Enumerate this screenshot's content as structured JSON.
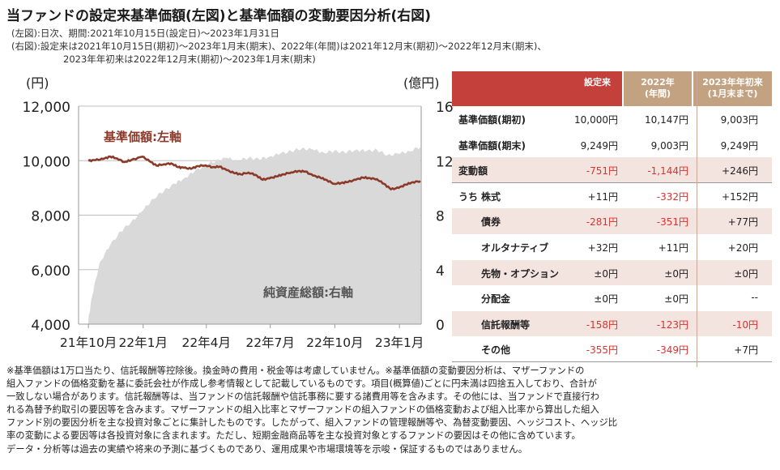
{
  "header": {
    "title": "当ファンドの設定来基準価額(左図)と基準価額の変動要因分析(右図)",
    "sub1": "(左図):日次、期間:2021年10月15日(設定日)〜2023年1月31日",
    "sub2": "(右図):設定来は2021年10月15日(期初)〜2023年1月末(期末)、2022年(年間)は2021年12月末(期初)〜2022年12月末(期末)、",
    "sub3": "2023年年初来は2022年12月末(期初)〜2023年1月末(期末)"
  },
  "chart_data": {
    "type": "line+area",
    "left_unit": "(円)",
    "right_unit": "(億円)",
    "left_axis": {
      "min": 4000,
      "max": 12000,
      "ticks": [
        "12,000",
        "10,000",
        "8,000",
        "6,000",
        "4,000"
      ]
    },
    "right_axis": {
      "min": 0,
      "max": 16,
      "ticks": [
        "16",
        "12",
        "8",
        "4",
        "0"
      ]
    },
    "x_ticks": [
      "21年10月",
      "22年1月",
      "22年4月",
      "22年7月",
      "22年10月",
      "23年1月"
    ],
    "grid": true,
    "series": [
      {
        "name": "基準価額:左軸",
        "axis": "left",
        "color": "#8b3a2a",
        "points": [
          [
            "2021-10-15",
            10000
          ],
          [
            "2021-10-25",
            10020
          ],
          [
            "2021-11-05",
            10060
          ],
          [
            "2021-11-15",
            10150
          ],
          [
            "2021-11-25",
            10080
          ],
          [
            "2021-12-05",
            9950
          ],
          [
            "2021-12-15",
            10020
          ],
          [
            "2021-12-31",
            10147
          ],
          [
            "2022-01-10",
            9980
          ],
          [
            "2022-01-20",
            9820
          ],
          [
            "2022-01-31",
            9870
          ],
          [
            "2022-02-10",
            9900
          ],
          [
            "2022-02-20",
            9760
          ],
          [
            "2022-02-28",
            9740
          ],
          [
            "2022-03-10",
            9700
          ],
          [
            "2022-03-20",
            9800
          ],
          [
            "2022-03-31",
            9830
          ],
          [
            "2022-04-10",
            9760
          ],
          [
            "2022-04-20",
            9780
          ],
          [
            "2022-04-30",
            9650
          ],
          [
            "2022-05-10",
            9550
          ],
          [
            "2022-05-20",
            9500
          ],
          [
            "2022-05-31",
            9560
          ],
          [
            "2022-06-10",
            9480
          ],
          [
            "2022-06-20",
            9300
          ],
          [
            "2022-06-30",
            9350
          ],
          [
            "2022-07-10",
            9420
          ],
          [
            "2022-07-20",
            9500
          ],
          [
            "2022-07-31",
            9570
          ],
          [
            "2022-08-10",
            9620
          ],
          [
            "2022-08-20",
            9600
          ],
          [
            "2022-08-31",
            9450
          ],
          [
            "2022-09-10",
            9380
          ],
          [
            "2022-09-20",
            9280
          ],
          [
            "2022-09-30",
            9150
          ],
          [
            "2022-10-10",
            9180
          ],
          [
            "2022-10-20",
            9220
          ],
          [
            "2022-10-31",
            9300
          ],
          [
            "2022-11-10",
            9380
          ],
          [
            "2022-11-20",
            9360
          ],
          [
            "2022-11-30",
            9320
          ],
          [
            "2022-12-10",
            9150
          ],
          [
            "2022-12-20",
            8950
          ],
          [
            "2022-12-31",
            9003
          ],
          [
            "2023-01-10",
            9120
          ],
          [
            "2023-01-20",
            9210
          ],
          [
            "2023-01-31",
            9249
          ]
        ]
      },
      {
        "name": "純資産総額:右軸",
        "axis": "right",
        "color": "#d9d9d9",
        "points": [
          [
            "2021-10-15",
            0.3
          ],
          [
            "2021-10-20",
            2.0
          ],
          [
            "2021-10-31",
            4.5
          ],
          [
            "2021-11-15",
            5.8
          ],
          [
            "2021-11-30",
            6.8
          ],
          [
            "2021-12-15",
            7.5
          ],
          [
            "2021-12-31",
            8.3
          ],
          [
            "2022-01-15",
            9.2
          ],
          [
            "2022-01-31",
            9.8
          ],
          [
            "2022-02-15",
            10.3
          ],
          [
            "2022-02-28",
            10.7
          ],
          [
            "2022-03-15",
            11.2
          ],
          [
            "2022-03-31",
            11.7
          ],
          [
            "2022-04-15",
            12.0
          ],
          [
            "2022-04-30",
            12.2
          ],
          [
            "2022-05-15",
            12.0
          ],
          [
            "2022-05-31",
            12.2
          ],
          [
            "2022-06-15",
            12.1
          ],
          [
            "2022-06-30",
            12.3
          ],
          [
            "2022-07-15",
            12.5
          ],
          [
            "2022-07-31",
            12.7
          ],
          [
            "2022-08-15",
            12.9
          ],
          [
            "2022-08-31",
            12.8
          ],
          [
            "2022-09-15",
            12.6
          ],
          [
            "2022-09-30",
            12.7
          ],
          [
            "2022-10-15",
            12.6
          ],
          [
            "2022-10-31",
            12.8
          ],
          [
            "2022-11-15",
            12.7
          ],
          [
            "2022-11-30",
            12.8
          ],
          [
            "2022-12-15",
            12.4
          ],
          [
            "2022-12-31",
            12.5
          ],
          [
            "2023-01-15",
            12.7
          ],
          [
            "2023-01-31",
            13.0
          ]
        ]
      }
    ],
    "annotations": {
      "nav_label": "基準価額:左軸",
      "aum_label": "純資産総額:右軸"
    }
  },
  "table": {
    "headers": [
      "設定来",
      "2022年\n(年間)",
      "2023年年初来\n(1月末まで)"
    ],
    "uchi": "うち",
    "rows": [
      {
        "label": "基準価額(期初)",
        "v1": "10,000円",
        "v2": "10,147円",
        "v3": "9,003円",
        "n1": false,
        "n2": false,
        "n3": false
      },
      {
        "label": "基準価額(期末)",
        "v1": "9,249円",
        "v2": "9,003円",
        "v3": "9,249円",
        "n1": false,
        "n2": false,
        "n3": false
      },
      {
        "label": "変動額",
        "v1": "-751円",
        "v2": "-1,144円",
        "v3": "+246円",
        "n1": true,
        "n2": true,
        "n3": false
      },
      {
        "label": "株式",
        "v1": "+11円",
        "v2": "-332円",
        "v3": "+152円",
        "n1": false,
        "n2": true,
        "n3": false
      },
      {
        "label": "債券",
        "v1": "-281円",
        "v2": "-351円",
        "v3": "+77円",
        "n1": true,
        "n2": true,
        "n3": false
      },
      {
        "label": "オルタナティブ",
        "v1": "+32円",
        "v2": "+11円",
        "v3": "+20円",
        "n1": false,
        "n2": false,
        "n3": false
      },
      {
        "label": "先物・オプション",
        "v1": "±0円",
        "v2": "±0円",
        "v3": "±0円",
        "n1": false,
        "n2": false,
        "n3": false
      },
      {
        "label": "分配金",
        "v1": "±0円",
        "v2": "±0円",
        "v3": "--",
        "n1": false,
        "n2": false,
        "n3": false
      },
      {
        "label": "信託報酬等",
        "v1": "-158円",
        "v2": "-123円",
        "v3": "-10円",
        "n1": true,
        "n2": true,
        "n3": true
      },
      {
        "label": "その他",
        "v1": "-355円",
        "v2": "-349円",
        "v3": "+7円",
        "n1": true,
        "n2": true,
        "n3": false
      }
    ]
  },
  "notes": [
    "※基準価額は1万口当たり、信託報酬等控除後。換金時の費用・税金等は考慮していません。※基準価額の変動要因分析は、マザーファンドの",
    "組入ファンドの価格変動を基に委託会社が作成し参考情報として記載しているものです。項目(概算値)ごとに円未満は四捨五入しており、合計が",
    "一致しない場合があります。信託報酬等は、当ファンドの信託報酬や信託事務に要する諸費用等を含みます。その他には、当ファンドで直接行わ",
    "れる為替予約取引の要因等を含みます。マザーファンドの組入比率とマザーファンドの組入ファンドの価格変動および組入比率から算出した組入",
    "ファンド別の要因分析を主な投資対象ごとに集計したものです。したがって、組入ファンドの管理報酬等や、為替変動要因、ヘッジコスト、ヘッジ比",
    "率の変動による要因等は各投資対象に含まれます。ただし、短期金融商品等を主な投資対象とするファンドの要因はその他に含めています。",
    "データ・分析等は過去の実績や将来の予測に基づくものであり、運用成果や市場環境等を示唆・保証するものではありません。"
  ],
  "colors": {
    "header_red": "#c4403a",
    "header_tan": "#c3a282",
    "nav_line": "#8b3a2a",
    "aum_area": "#d9d9d9",
    "neg": "#e0312e",
    "shade": "#f4e4df"
  }
}
